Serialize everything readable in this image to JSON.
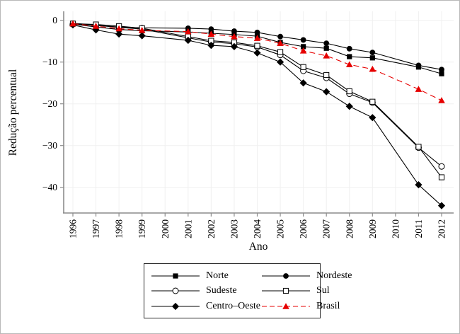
{
  "chart_data": {
    "type": "line",
    "title": "",
    "xlabel": "Ano",
    "ylabel": "Redução percentual",
    "x": [
      1996,
      1997,
      1998,
      1999,
      2001,
      2002,
      2003,
      2004,
      2005,
      2006,
      2007,
      2008,
      2009,
      2011,
      2012
    ],
    "x_note": "no survey data for 2000 and 2010; lines connect across the gaps",
    "x_tick_years": [
      1996,
      1997,
      1998,
      1999,
      2000,
      2001,
      2002,
      2003,
      2004,
      2005,
      2006,
      2007,
      2008,
      2009,
      2010,
      2011,
      2012
    ],
    "x_tick_labels": [
      "1996",
      "1997",
      "1998",
      "1999",
      "2000",
      "2001",
      "2002",
      "2003",
      "2004",
      "2005",
      "2006",
      "2007",
      "2008",
      "2009",
      "2010",
      "2011",
      "2012"
    ],
    "y_ticks": [
      0,
      -10,
      -20,
      -30,
      -40
    ],
    "y_tick_labels": [
      "0",
      "−10",
      "−20",
      "−30",
      "−40"
    ],
    "xlim": [
      1995.6,
      2012.5
    ],
    "ylim": [
      -46,
      2
    ],
    "grid": true,
    "legend_position": "bottom",
    "series": [
      {
        "name": "Norte",
        "marker": "filled-square",
        "color": "#000000",
        "dash": "none",
        "values": [
          -0.9,
          -1.6,
          -2.2,
          -2.5,
          -2.8,
          -3.1,
          -3.4,
          -3.8,
          -5.3,
          -6.3,
          -6.7,
          -8.7,
          -9.0,
          -11.2,
          -12.8
        ]
      },
      {
        "name": "Nordeste",
        "marker": "filled-circle",
        "color": "#000000",
        "dash": "none",
        "values": [
          -0.7,
          -1.2,
          -1.6,
          -1.8,
          -1.9,
          -2.1,
          -2.6,
          -2.9,
          -3.9,
          -4.7,
          -5.5,
          -6.8,
          -7.7,
          -10.8,
          -11.8
        ]
      },
      {
        "name": "Sudeste",
        "marker": "open-circle",
        "color": "#000000",
        "dash": "none",
        "values": [
          -0.9,
          -1.2,
          -1.7,
          -2.1,
          -4.2,
          -5.2,
          -5.6,
          -6.4,
          -8.3,
          -12.1,
          -13.8,
          -17.6,
          -19.7,
          -30.5,
          -35.0
        ]
      },
      {
        "name": "Sul",
        "marker": "open-square",
        "color": "#000000",
        "dash": "none",
        "values": [
          -0.8,
          -1.0,
          -1.4,
          -1.9,
          -3.9,
          -4.9,
          -5.3,
          -6.1,
          -7.6,
          -11.2,
          -13.1,
          -17.0,
          -19.5,
          -30.3,
          -37.6
        ]
      },
      {
        "name": "Centro–Oeste",
        "marker": "filled-diamond",
        "color": "#000000",
        "dash": "none",
        "values": [
          -1.1,
          -2.3,
          -3.3,
          -3.7,
          -4.8,
          -6.0,
          -6.3,
          -7.8,
          -10.0,
          -15.0,
          -17.1,
          -20.6,
          -23.3,
          -39.4,
          -44.4
        ]
      },
      {
        "name": "Brasil",
        "marker": "filled-triangle",
        "color": "#e60000",
        "dash": "dashed",
        "values": [
          -0.8,
          -1.4,
          -2.0,
          -2.4,
          -2.7,
          -3.3,
          -3.9,
          -4.3,
          -5.5,
          -7.3,
          -8.5,
          -10.6,
          -11.7,
          -16.5,
          -19.2
        ]
      }
    ],
    "colors": {
      "line_black": "#000000",
      "brasil_red": "#e60000",
      "grid": "#f0f0f0",
      "axis": "#8c8c8c",
      "text": "#000000"
    }
  },
  "legend": {
    "order_note": "two columns: [Norte, Sudeste, Centro–Oeste] | [Nordeste, Sul, Brasil]"
  }
}
